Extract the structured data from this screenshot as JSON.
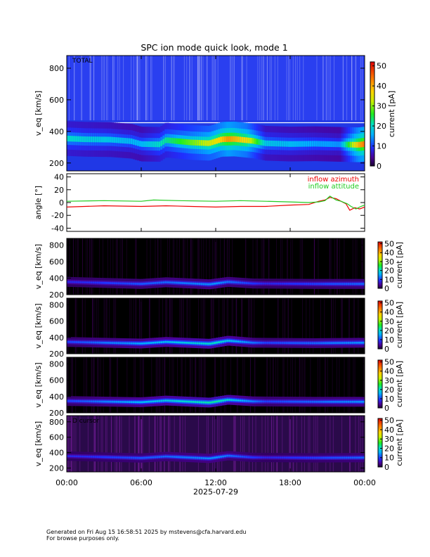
{
  "footer": {
    "line1": "Generated on Fri Aug 15 16:58:51 2025 by mstevens@cfa.harvard.edu",
    "line2": "For browse purposes only."
  },
  "chart_data": [
    {
      "type": "heatmap",
      "title": "SPC ion mode quick look, mode 1",
      "panel_label": "TOTAL",
      "ylabel": "v_eq [km/s]",
      "ylim": [
        150,
        880
      ],
      "yticks": [
        200,
        400,
        600,
        800
      ],
      "colorbar": {
        "label": "current [pA]",
        "range": [
          0,
          52
        ],
        "ticks": [
          0,
          10,
          20,
          30,
          40,
          50
        ],
        "colormap": "rainbow"
      },
      "background": "#2a3ff0",
      "core_speed_kms": [
        {
          "t": 0.0,
          "v": 355
        },
        {
          "t": 1.5,
          "v": 350
        },
        {
          "t": 3.5,
          "v": 348
        },
        {
          "t": 5.2,
          "v": 338
        },
        {
          "t": 6.0,
          "v": 320
        },
        {
          "t": 7.5,
          "v": 318
        },
        {
          "t": 8.0,
          "v": 345
        },
        {
          "t": 10.0,
          "v": 330
        },
        {
          "t": 11.5,
          "v": 325
        },
        {
          "t": 12.5,
          "v": 350
        },
        {
          "t": 13.5,
          "v": 352
        },
        {
          "t": 15.0,
          "v": 340
        },
        {
          "t": 16.0,
          "v": 325
        },
        {
          "t": 18.0,
          "v": 320
        },
        {
          "t": 20.0,
          "v": 322
        },
        {
          "t": 22.0,
          "v": 318
        },
        {
          "t": 23.5,
          "v": 315
        },
        {
          "t": 24.0,
          "v": 320
        }
      ],
      "peak_current_pA": [
        {
          "t": 0.0,
          "c": 20
        },
        {
          "t": 6.0,
          "c": 16
        },
        {
          "t": 12.0,
          "c": 35
        },
        {
          "t": 13.0,
          "c": 42
        },
        {
          "t": 14.5,
          "c": 36
        },
        {
          "t": 16.0,
          "c": 18
        },
        {
          "t": 22.0,
          "c": 14
        },
        {
          "t": 23.5,
          "c": 40
        },
        {
          "t": 24.0,
          "c": 44
        }
      ]
    },
    {
      "type": "line",
      "ylabel": "angle [°]",
      "ylim": [
        -45,
        45
      ],
      "yticks": [
        -40,
        -20,
        0,
        20,
        40
      ],
      "series": [
        {
          "name": "inflow azimuth",
          "color": "#ee0000",
          "points": [
            {
              "t": 0,
              "y": -7
            },
            {
              "t": 3,
              "y": -5
            },
            {
              "t": 6,
              "y": -6
            },
            {
              "t": 8,
              "y": -5
            },
            {
              "t": 10,
              "y": -6
            },
            {
              "t": 12,
              "y": -7
            },
            {
              "t": 14,
              "y": -6
            },
            {
              "t": 16,
              "y": -6
            },
            {
              "t": 18,
              "y": -4
            },
            {
              "t": 19.5,
              "y": -3
            },
            {
              "t": 20.3,
              "y": 2
            },
            {
              "t": 20.8,
              "y": 4
            },
            {
              "t": 21.2,
              "y": 8
            },
            {
              "t": 21.7,
              "y": 6
            },
            {
              "t": 22.1,
              "y": 2
            },
            {
              "t": 22.5,
              "y": -2
            },
            {
              "t": 22.8,
              "y": -12
            },
            {
              "t": 23.2,
              "y": -8
            },
            {
              "t": 23.6,
              "y": -10
            },
            {
              "t": 24,
              "y": -7
            }
          ]
        },
        {
          "name": "inflow attitude",
          "color": "#22cc22",
          "points": [
            {
              "t": 0,
              "y": 2
            },
            {
              "t": 3,
              "y": 3
            },
            {
              "t": 6,
              "y": 2
            },
            {
              "t": 7,
              "y": 4
            },
            {
              "t": 9,
              "y": 3
            },
            {
              "t": 12,
              "y": 2
            },
            {
              "t": 14,
              "y": 3
            },
            {
              "t": 16,
              "y": 2
            },
            {
              "t": 18,
              "y": 1
            },
            {
              "t": 19.5,
              "y": 0
            },
            {
              "t": 20.3,
              "y": 1
            },
            {
              "t": 20.8,
              "y": 3
            },
            {
              "t": 21.2,
              "y": 10
            },
            {
              "t": 21.7,
              "y": 4
            },
            {
              "t": 22.1,
              "y": 2
            },
            {
              "t": 22.6,
              "y": -2
            },
            {
              "t": 22.9,
              "y": -6
            },
            {
              "t": 23.3,
              "y": -10
            },
            {
              "t": 23.7,
              "y": -6
            },
            {
              "t": 24,
              "y": -4
            }
          ]
        }
      ]
    },
    {
      "type": "heatmap",
      "panel_label": "",
      "ylabel": "v_eq [km/s]",
      "ylim": [
        200,
        880
      ],
      "yticks": [
        200,
        400,
        600,
        800
      ],
      "colorbar": {
        "label": "current [pA]",
        "range": [
          0,
          52
        ],
        "ticks": [
          0,
          10,
          20,
          30,
          40,
          50
        ],
        "colormap": "rainbow"
      },
      "background": "#000000",
      "core_speed_kms": [
        {
          "t": 0,
          "v": 355
        },
        {
          "t": 6,
          "v": 330
        },
        {
          "t": 8,
          "v": 350
        },
        {
          "t": 11.5,
          "v": 325
        },
        {
          "t": 13,
          "v": 355
        },
        {
          "t": 15,
          "v": 335
        },
        {
          "t": 20,
          "v": 330
        },
        {
          "t": 24,
          "v": 330
        }
      ],
      "peak_current_pA": [
        {
          "t": 0,
          "c": 8
        },
        {
          "t": 12,
          "c": 14
        },
        {
          "t": 16,
          "c": 8
        },
        {
          "t": 24,
          "c": 12
        }
      ]
    },
    {
      "type": "heatmap",
      "panel_label": "",
      "ylabel": "v_eq [km/s]",
      "ylim": [
        200,
        880
      ],
      "yticks": [
        200,
        400,
        600,
        800
      ],
      "colorbar": {
        "label": "current [pA]",
        "range": [
          0,
          52
        ],
        "ticks": [
          0,
          10,
          20,
          30,
          40,
          50
        ],
        "colormap": "rainbow"
      },
      "background": "#000000",
      "core_speed_kms": [
        {
          "t": 0,
          "v": 345
        },
        {
          "t": 6,
          "v": 325
        },
        {
          "t": 8,
          "v": 345
        },
        {
          "t": 11.5,
          "v": 322
        },
        {
          "t": 13,
          "v": 360
        },
        {
          "t": 15,
          "v": 335
        },
        {
          "t": 20,
          "v": 330
        },
        {
          "t": 24,
          "v": 335
        }
      ],
      "peak_current_pA": [
        {
          "t": 0,
          "c": 10
        },
        {
          "t": 12,
          "c": 20
        },
        {
          "t": 16,
          "c": 10
        },
        {
          "t": 24,
          "c": 14
        }
      ]
    },
    {
      "type": "heatmap",
      "panel_label": "",
      "ylabel": "v_eq [km/s]",
      "ylim": [
        200,
        880
      ],
      "yticks": [
        200,
        400,
        600,
        800
      ],
      "colorbar": {
        "label": "current [pA]",
        "range": [
          0,
          52
        ],
        "ticks": [
          0,
          10,
          20,
          30,
          40,
          50
        ],
        "colormap": "rainbow"
      },
      "background": "#000000",
      "core_speed_kms": [
        {
          "t": 0,
          "v": 345
        },
        {
          "t": 6,
          "v": 330
        },
        {
          "t": 8,
          "v": 350
        },
        {
          "t": 11.5,
          "v": 325
        },
        {
          "t": 13,
          "v": 360
        },
        {
          "t": 15,
          "v": 340
        },
        {
          "t": 20,
          "v": 335
        },
        {
          "t": 24,
          "v": 335
        }
      ],
      "peak_current_pA": [
        {
          "t": 0,
          "c": 10
        },
        {
          "t": 12,
          "c": 22
        },
        {
          "t": 16,
          "c": 10
        },
        {
          "t": 24,
          "c": 14
        }
      ]
    },
    {
      "type": "heatmap",
      "panel_label": "D cursor",
      "ylabel": "v_eq [km/s]",
      "ylim": [
        150,
        880
      ],
      "yticks": [
        200,
        400,
        600,
        800
      ],
      "colorbar": {
        "label": "current [pA]",
        "range": [
          0,
          52
        ],
        "ticks": [
          0,
          10,
          20,
          30,
          40,
          50
        ],
        "colormap": "rainbow"
      },
      "background": "#2a0a4a",
      "core_speed_kms": [
        {
          "t": 0,
          "v": 355
        },
        {
          "t": 6,
          "v": 330
        },
        {
          "t": 8,
          "v": 350
        },
        {
          "t": 11.5,
          "v": 325
        },
        {
          "t": 13,
          "v": 360
        },
        {
          "t": 15,
          "v": 338
        },
        {
          "t": 20,
          "v": 332
        },
        {
          "t": 24,
          "v": 335
        }
      ],
      "peak_current_pA": [
        {
          "t": 0,
          "c": 8
        },
        {
          "t": 12,
          "c": 14
        },
        {
          "t": 16,
          "c": 8
        },
        {
          "t": 24,
          "c": 12
        }
      ]
    }
  ],
  "time_axis": {
    "range_hours": [
      0,
      24
    ],
    "tick_hours": [
      0,
      6,
      12,
      18,
      24
    ],
    "tick_labels": [
      "00:00",
      "06:00",
      "12:00",
      "18:00",
      "00:00"
    ],
    "date_label": "2025-07-29"
  }
}
